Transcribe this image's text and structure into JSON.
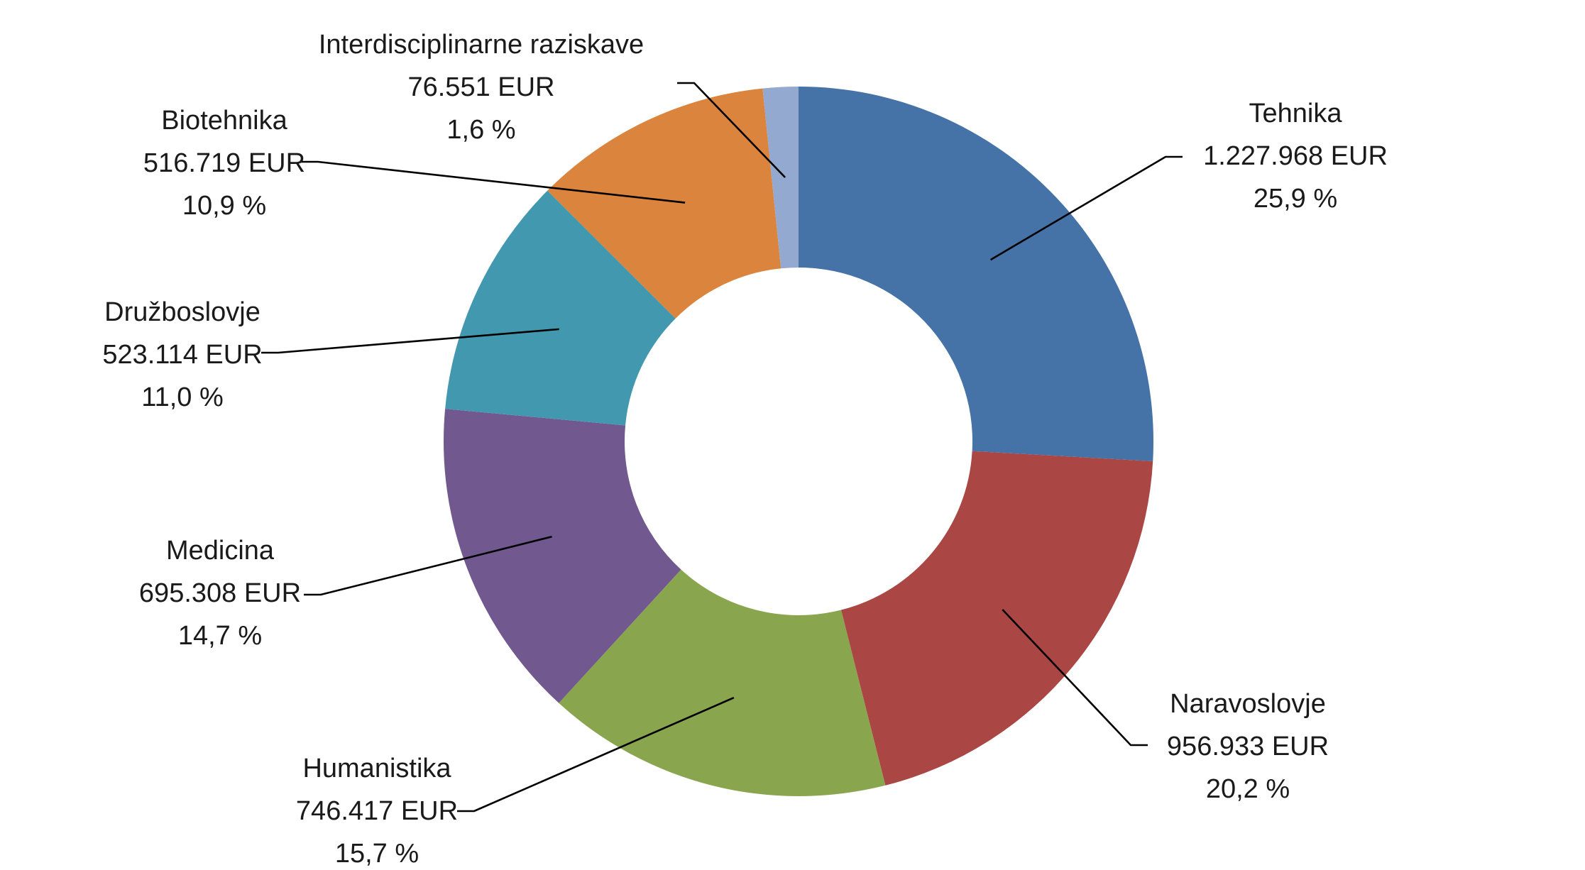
{
  "chart_data": {
    "type": "pie",
    "variant": "donut",
    "title": "",
    "legend": "none",
    "slices": [
      {
        "name": "Tehnika",
        "value_label": "1.227.968 EUR",
        "percent_label": "25,9 %",
        "value": 1227968,
        "percent": 25.9,
        "color": "#4572A7"
      },
      {
        "name": "Naravoslovje",
        "value_label": "956.933 EUR",
        "percent_label": "20,2 %",
        "value": 956933,
        "percent": 20.2,
        "color": "#AA4643"
      },
      {
        "name": "Humanistika",
        "value_label": "746.417 EUR",
        "percent_label": "15,7 %",
        "value": 746417,
        "percent": 15.7,
        "color": "#89A54E"
      },
      {
        "name": "Medicina",
        "value_label": "695.308 EUR",
        "percent_label": "14,7 %",
        "value": 695308,
        "percent": 14.7,
        "color": "#71588F"
      },
      {
        "name": "Družboslovje",
        "value_label": "523.114 EUR",
        "percent_label": "11,0 %",
        "value": 523114,
        "percent": 11.0,
        "color": "#4198AF"
      },
      {
        "name": "Biotehnika",
        "value_label": "516.719 EUR",
        "percent_label": "10,9 %",
        "value": 516719,
        "percent": 10.9,
        "color": "#DB843D"
      },
      {
        "name": "Interdisciplinarne raziskave",
        "value_label": "76.551 EUR",
        "percent_label": "1,6 %",
        "value": 76551,
        "percent": 1.6,
        "color": "#93A9CF"
      }
    ]
  }
}
